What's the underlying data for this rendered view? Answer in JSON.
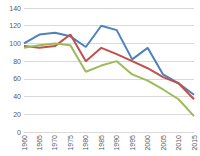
{
  "chart_data": {
    "type": "line",
    "categories": [
      "1960",
      "1965",
      "1970",
      "1975",
      "1980",
      "1985",
      "1990",
      "1995",
      "2000",
      "2005",
      "2010",
      "2015"
    ],
    "series": [
      {
        "color": "#4f81bd",
        "values": [
          100,
          110,
          112,
          108,
          96,
          120,
          115,
          82,
          95,
          65,
          55,
          42
        ]
      },
      {
        "color": "#c0504d",
        "values": [
          97,
          95,
          97,
          110,
          80,
          95,
          88,
          80,
          72,
          62,
          55,
          37
        ]
      },
      {
        "color": "#9bbb59",
        "values": [
          95,
          98,
          100,
          98,
          68,
          75,
          80,
          65,
          58,
          48,
          37,
          18
        ]
      }
    ],
    "ylim": [
      0,
      140
    ],
    "yticks": [
      0,
      20,
      40,
      60,
      80,
      100,
      120,
      140
    ],
    "grid": true
  }
}
